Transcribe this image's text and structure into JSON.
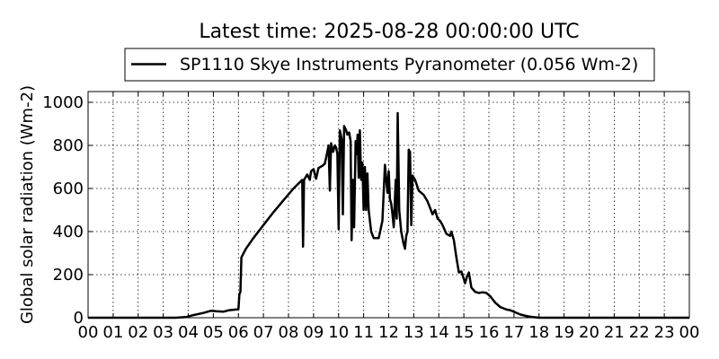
{
  "chart_data": {
    "type": "line",
    "title": "Latest time: 2025-08-28 00:00:00 UTC",
    "xlabel": "",
    "ylabel": "Global solar radiation (Wm-2)",
    "xlim": [
      0,
      24
    ],
    "ylim": [
      0,
      1050
    ],
    "x_ticks": [
      "00",
      "01",
      "02",
      "03",
      "04",
      "05",
      "06",
      "07",
      "08",
      "09",
      "10",
      "11",
      "12",
      "13",
      "14",
      "15",
      "16",
      "17",
      "18",
      "19",
      "20",
      "21",
      "22",
      "23",
      "00"
    ],
    "y_ticks": [
      0,
      200,
      400,
      600,
      800,
      1000
    ],
    "grid": true,
    "legend_position": "top-center",
    "series": [
      {
        "name": "SP1110 Skye Instruments Pyranometer (0.056 Wm-2)",
        "color": "#000000",
        "points": [
          [
            0,
            0
          ],
          [
            3.5,
            0
          ],
          [
            3.9,
            3
          ],
          [
            4.2,
            12
          ],
          [
            4.6,
            22
          ],
          [
            4.9,
            32
          ],
          [
            5.1,
            30
          ],
          [
            5.4,
            28
          ],
          [
            5.6,
            34
          ],
          [
            5.9,
            38
          ],
          [
            6.0,
            40
          ],
          [
            6.04,
            110
          ],
          [
            6.08,
            120
          ],
          [
            6.12,
            280
          ],
          [
            6.3,
            320
          ],
          [
            6.6,
            370
          ],
          [
            7.0,
            430
          ],
          [
            7.4,
            490
          ],
          [
            7.8,
            545
          ],
          [
            8.2,
            600
          ],
          [
            8.55,
            640
          ],
          [
            8.58,
            330
          ],
          [
            8.62,
            640
          ],
          [
            8.75,
            665
          ],
          [
            8.85,
            640
          ],
          [
            8.9,
            680
          ],
          [
            9.0,
            690
          ],
          [
            9.1,
            645
          ],
          [
            9.2,
            695
          ],
          [
            9.35,
            705
          ],
          [
            9.45,
            715
          ],
          [
            9.55,
            770
          ],
          [
            9.6,
            800
          ],
          [
            9.65,
            590
          ],
          [
            9.7,
            810
          ],
          [
            9.78,
            770
          ],
          [
            9.85,
            800
          ],
          [
            9.9,
            790
          ],
          [
            9.95,
            760
          ],
          [
            10.0,
            410
          ],
          [
            10.05,
            870
          ],
          [
            10.12,
            830
          ],
          [
            10.17,
            480
          ],
          [
            10.22,
            890
          ],
          [
            10.3,
            870
          ],
          [
            10.35,
            850
          ],
          [
            10.42,
            860
          ],
          [
            10.48,
            820
          ],
          [
            10.52,
            360
          ],
          [
            10.58,
            640
          ],
          [
            10.62,
            420
          ],
          [
            10.68,
            820
          ],
          [
            10.72,
            760
          ],
          [
            10.76,
            850
          ],
          [
            10.8,
            650
          ],
          [
            10.85,
            870
          ],
          [
            10.9,
            640
          ],
          [
            10.95,
            720
          ],
          [
            11.0,
            500
          ],
          [
            11.05,
            700
          ],
          [
            11.1,
            500
          ],
          [
            11.15,
            670
          ],
          [
            11.2,
            500
          ],
          [
            11.3,
            400
          ],
          [
            11.4,
            370
          ],
          [
            11.6,
            370
          ],
          [
            11.75,
            450
          ],
          [
            11.85,
            710
          ],
          [
            11.95,
            580
          ],
          [
            12.0,
            680
          ],
          [
            12.05,
            550
          ],
          [
            12.1,
            530
          ],
          [
            12.15,
            480
          ],
          [
            12.2,
            420
          ],
          [
            12.25,
            560
          ],
          [
            12.28,
            640
          ],
          [
            12.32,
            460
          ],
          [
            12.36,
            950
          ],
          [
            12.42,
            500
          ],
          [
            12.5,
            400
          ],
          [
            12.58,
            350
          ],
          [
            12.65,
            320
          ],
          [
            12.7,
            380
          ],
          [
            12.75,
            400
          ],
          [
            12.8,
            780
          ],
          [
            12.85,
            770
          ],
          [
            12.9,
            430
          ],
          [
            12.95,
            660
          ],
          [
            13.05,
            640
          ],
          [
            13.2,
            590
          ],
          [
            13.4,
            570
          ],
          [
            13.55,
            540
          ],
          [
            13.65,
            510
          ],
          [
            13.75,
            480
          ],
          [
            13.85,
            500
          ],
          [
            13.95,
            460
          ],
          [
            14.05,
            450
          ],
          [
            14.15,
            430
          ],
          [
            14.3,
            390
          ],
          [
            14.45,
            380
          ],
          [
            14.5,
            400
          ],
          [
            14.6,
            360
          ],
          [
            14.7,
            280
          ],
          [
            14.8,
            210
          ],
          [
            14.9,
            215
          ],
          [
            15.0,
            180
          ],
          [
            15.05,
            160
          ],
          [
            15.12,
            190
          ],
          [
            15.2,
            210
          ],
          [
            15.3,
            140
          ],
          [
            15.45,
            120
          ],
          [
            15.6,
            115
          ],
          [
            15.75,
            118
          ],
          [
            15.9,
            115
          ],
          [
            16.05,
            100
          ],
          [
            16.25,
            70
          ],
          [
            16.45,
            50
          ],
          [
            16.7,
            38
          ],
          [
            16.85,
            35
          ],
          [
            17.05,
            25
          ],
          [
            17.25,
            15
          ],
          [
            17.5,
            8
          ],
          [
            17.75,
            3
          ],
          [
            18.0,
            0
          ],
          [
            24,
            0
          ]
        ]
      }
    ]
  }
}
